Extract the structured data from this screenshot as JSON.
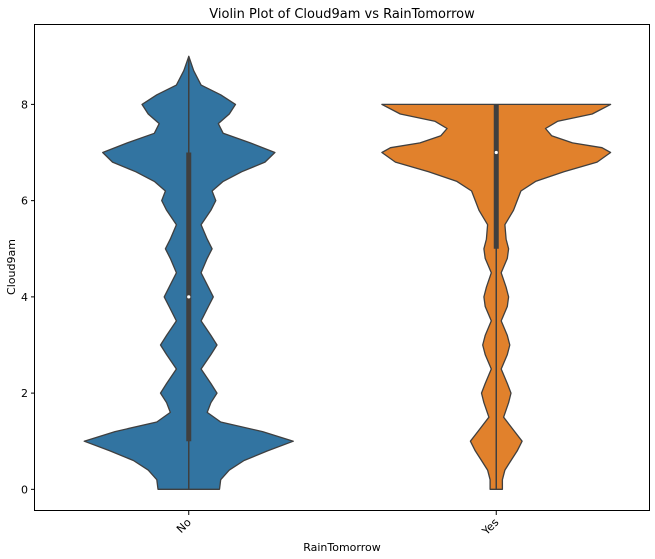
{
  "chart_data": {
    "type": "violin",
    "title": "Violin Plot of Cloud9am vs RainTomorrow",
    "xlabel": "RainTomorrow",
    "ylabel": "Cloud9am",
    "categories": [
      "No",
      "Yes"
    ],
    "ylim": [
      -0.45,
      9.65
    ],
    "yticks": [
      0,
      2,
      4,
      6,
      8
    ],
    "grid": false,
    "series": [
      {
        "color": "#3274a1",
        "min": 0,
        "max": 9,
        "q1": 1,
        "median": 4,
        "q3": 7,
        "density": [
          [
            0.0,
            0.25
          ],
          [
            0.2,
            0.26
          ],
          [
            0.4,
            0.33
          ],
          [
            0.6,
            0.45
          ],
          [
            0.8,
            0.64
          ],
          [
            1.0,
            0.85
          ],
          [
            1.2,
            0.6
          ],
          [
            1.4,
            0.26
          ],
          [
            1.6,
            0.15
          ],
          [
            1.8,
            0.18
          ],
          [
            2.0,
            0.23
          ],
          [
            2.2,
            0.18
          ],
          [
            2.5,
            0.1
          ],
          [
            2.8,
            0.18
          ],
          [
            3.0,
            0.23
          ],
          [
            3.2,
            0.18
          ],
          [
            3.5,
            0.1
          ],
          [
            3.8,
            0.16
          ],
          [
            4.0,
            0.2
          ],
          [
            4.2,
            0.16
          ],
          [
            4.5,
            0.1
          ],
          [
            4.8,
            0.15
          ],
          [
            5.0,
            0.19
          ],
          [
            5.2,
            0.15
          ],
          [
            5.5,
            0.1
          ],
          [
            5.8,
            0.18
          ],
          [
            6.0,
            0.22
          ],
          [
            6.2,
            0.19
          ],
          [
            6.4,
            0.28
          ],
          [
            6.6,
            0.43
          ],
          [
            6.8,
            0.62
          ],
          [
            7.0,
            0.7
          ],
          [
            7.2,
            0.5
          ],
          [
            7.4,
            0.28
          ],
          [
            7.6,
            0.24
          ],
          [
            7.8,
            0.33
          ],
          [
            8.0,
            0.38
          ],
          [
            8.2,
            0.26
          ],
          [
            8.4,
            0.1
          ],
          [
            8.7,
            0.04
          ],
          [
            9.0,
            0.0
          ]
        ]
      },
      {
        "color": "#e1812c",
        "min": 0,
        "max": 8,
        "q1": 5,
        "median": 7,
        "q3": 8,
        "density": [
          [
            0.0,
            0.05
          ],
          [
            0.2,
            0.05
          ],
          [
            0.4,
            0.07
          ],
          [
            0.6,
            0.12
          ],
          [
            0.8,
            0.17
          ],
          [
            1.0,
            0.21
          ],
          [
            1.2,
            0.15
          ],
          [
            1.5,
            0.06
          ],
          [
            1.8,
            0.1
          ],
          [
            2.0,
            0.12
          ],
          [
            2.2,
            0.09
          ],
          [
            2.5,
            0.04
          ],
          [
            2.8,
            0.09
          ],
          [
            3.0,
            0.11
          ],
          [
            3.2,
            0.09
          ],
          [
            3.5,
            0.04
          ],
          [
            3.8,
            0.09
          ],
          [
            4.0,
            0.1
          ],
          [
            4.2,
            0.08
          ],
          [
            4.5,
            0.04
          ],
          [
            4.8,
            0.09
          ],
          [
            5.0,
            0.1
          ],
          [
            5.2,
            0.08
          ],
          [
            5.5,
            0.07
          ],
          [
            5.8,
            0.14
          ],
          [
            6.0,
            0.17
          ],
          [
            6.2,
            0.2
          ],
          [
            6.4,
            0.32
          ],
          [
            6.6,
            0.55
          ],
          [
            6.8,
            0.82
          ],
          [
            7.0,
            0.93
          ],
          [
            7.1,
            0.86
          ],
          [
            7.2,
            0.62
          ],
          [
            7.35,
            0.45
          ],
          [
            7.5,
            0.4
          ],
          [
            7.65,
            0.5
          ],
          [
            7.8,
            0.78
          ],
          [
            8.0,
            0.93
          ]
        ]
      }
    ]
  }
}
